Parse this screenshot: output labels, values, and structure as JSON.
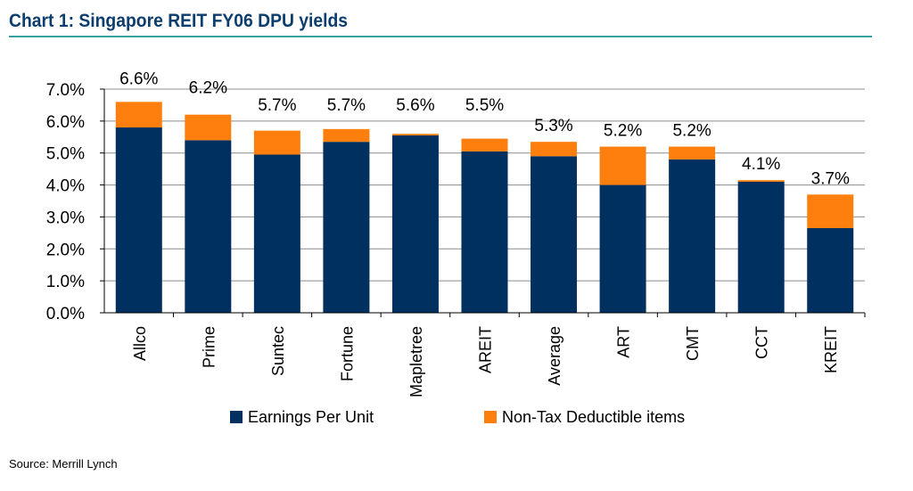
{
  "header": {
    "title": "Chart 1: Singapore REIT FY06 DPU yields"
  },
  "footer": {
    "source": "Source: Merrill Lynch"
  },
  "chart_data": {
    "type": "bar",
    "stacked": true,
    "title": "Chart 1: Singapore REIT FY06 DPU yields",
    "xlabel": "",
    "ylabel": "",
    "ylim": [
      0,
      7
    ],
    "yticks": [
      "0.0%",
      "1.0%",
      "2.0%",
      "3.0%",
      "4.0%",
      "5.0%",
      "6.0%",
      "7.0%"
    ],
    "grid": true,
    "legend_position": "bottom",
    "categories": [
      "Allco",
      "Prime",
      "Suntec",
      "Fortune",
      "Mapletree",
      "AREIT",
      "Average",
      "ART",
      "CMT",
      "CCT",
      "KREIT"
    ],
    "series": [
      {
        "name": "Earnings Per Unit",
        "color": "#00305f",
        "values": [
          5.8,
          5.4,
          4.95,
          5.35,
          5.55,
          5.05,
          4.9,
          4.0,
          4.8,
          4.1,
          2.65
        ]
      },
      {
        "name": "Non-Tax Deductible items",
        "color": "#ff7f0e",
        "values": [
          0.8,
          0.8,
          0.75,
          0.4,
          0.05,
          0.4,
          0.45,
          1.2,
          0.4,
          0.05,
          1.05
        ]
      }
    ],
    "data_labels": [
      "6.6%",
      "6.2%",
      "5.7%",
      "5.7%",
      "5.6%",
      "5.5%",
      "5.3%",
      "5.2%",
      "5.2%",
      "4.1%",
      "3.7%"
    ]
  }
}
